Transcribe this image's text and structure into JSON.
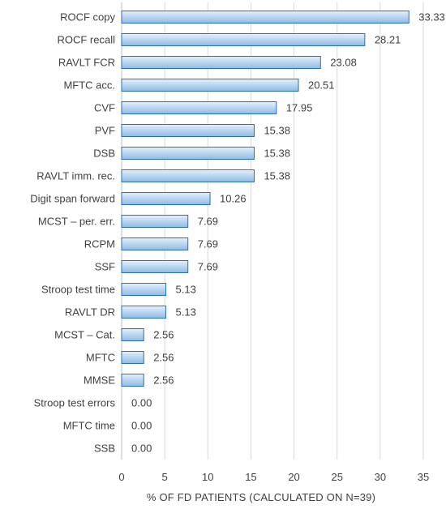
{
  "chart_data": {
    "type": "bar",
    "orientation": "horizontal",
    "categories": [
      "ROCF copy",
      "ROCF recall",
      "RAVLT FCR",
      "MFTC acc.",
      "CVF",
      "PVF",
      "DSB",
      "RAVLT imm. rec.",
      "Digit span forward",
      "MCST – per. err.",
      "RCPM",
      "SSF",
      "Stroop test time",
      "RAVLT DR",
      "MCST – Cat.",
      "MFTC",
      "MMSE",
      "Stroop test errors",
      "MFTC time",
      "SSB"
    ],
    "values": [
      33.33,
      28.21,
      23.08,
      20.51,
      17.95,
      15.38,
      15.38,
      15.38,
      10.26,
      7.69,
      7.69,
      7.69,
      5.13,
      5.13,
      2.56,
      2.56,
      2.56,
      0.0,
      0.0,
      0.0
    ],
    "value_labels": [
      "33.33",
      "28.21",
      "23.08",
      "20.51",
      "17.95",
      "15.38",
      "15.38",
      "15.38",
      "10.26",
      "7.69",
      "7.69",
      "7.69",
      "5.13",
      "5.13",
      "2.56",
      "2.56",
      "2.56",
      "0.00",
      "0.00",
      "0.00"
    ],
    "xlabel": "% OF FD PATIENTS (CALCULATED ON N=39)",
    "xlim": [
      0,
      35
    ],
    "xticks": [
      0,
      5,
      10,
      15,
      20,
      25,
      30,
      35
    ],
    "grid": "vertical",
    "legend": "none",
    "colors": {
      "bar_fill_light": "#e4f0fb",
      "bar_fill_dark": "#8fbbe6",
      "bar_stroke": "#2f6fb4",
      "grid": "#d9d9d9",
      "axis": "#bfbfbf",
      "text": "#404040"
    }
  }
}
